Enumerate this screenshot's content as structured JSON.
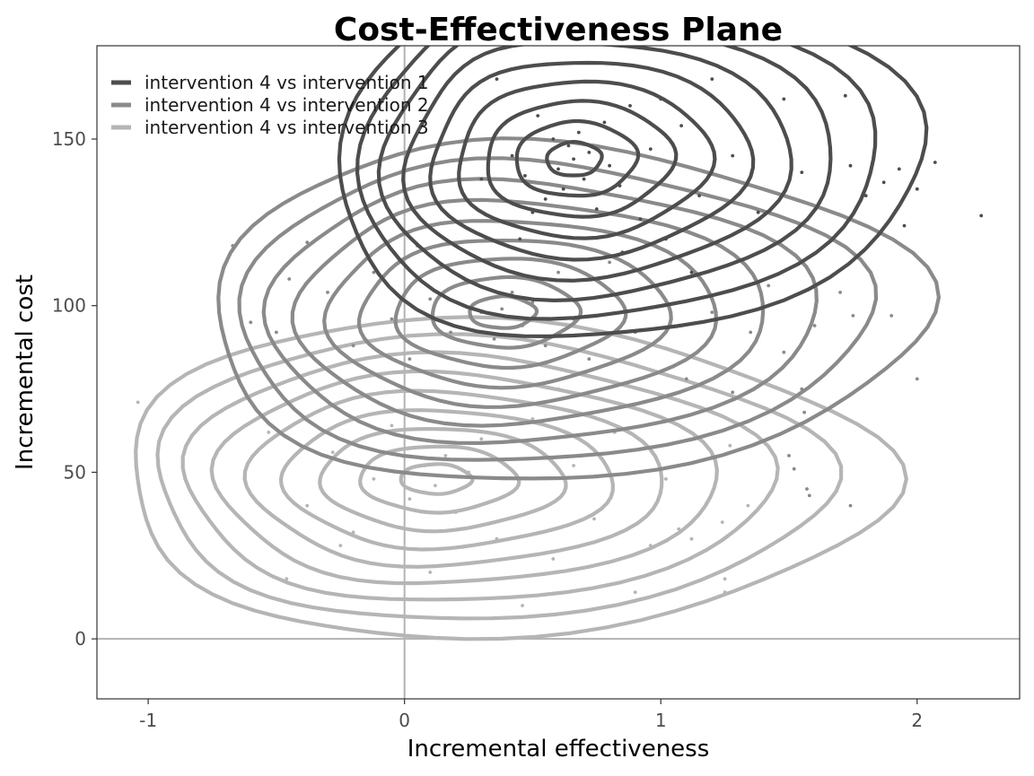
{
  "chart_data": {
    "type": "scatter",
    "title": "Cost-Effectiveness Plane",
    "xlabel": "Incremental effectiveness",
    "ylabel": "Incremental cost",
    "xlim": [
      -1.2,
      2.4
    ],
    "ylim": [
      -18,
      178
    ],
    "x_ticks": [
      -1,
      0,
      1,
      2
    ],
    "y_ticks": [
      0,
      50,
      100,
      150
    ],
    "x_tick_labels": [
      "-1",
      "0",
      "1",
      "2"
    ],
    "y_tick_labels": [
      "0",
      "50",
      "100",
      "150"
    ],
    "reference_lines": {
      "x": 0,
      "y": 0
    },
    "grid": false,
    "legend_position": "top-left inside",
    "overlay": "density contours",
    "series": [
      {
        "name": "intervention 4 vs intervention 1",
        "color": "#4d4d4d",
        "center": [
          0.66,
          144
        ],
        "spread": [
          0.38,
          18
        ],
        "points": [
          [
            0.36,
            168
          ],
          [
            0.42,
            145
          ],
          [
            0.47,
            139
          ],
          [
            0.52,
            157
          ],
          [
            0.55,
            132
          ],
          [
            0.58,
            150
          ],
          [
            0.6,
            141
          ],
          [
            0.62,
            135
          ],
          [
            0.64,
            148
          ],
          [
            0.66,
            144
          ],
          [
            0.68,
            152
          ],
          [
            0.7,
            138
          ],
          [
            0.72,
            146
          ],
          [
            0.75,
            129
          ],
          [
            0.78,
            155
          ],
          [
            0.8,
            142
          ],
          [
            0.84,
            136
          ],
          [
            0.88,
            160
          ],
          [
            0.92,
            126
          ],
          [
            0.96,
            147
          ],
          [
            1.02,
            120
          ],
          [
            1.08,
            154
          ],
          [
            1.15,
            133
          ],
          [
            1.2,
            168
          ],
          [
            1.28,
            145
          ],
          [
            1.38,
            128
          ],
          [
            1.48,
            162
          ],
          [
            1.55,
            140
          ],
          [
            1.62,
            131
          ],
          [
            1.72,
            163
          ],
          [
            1.8,
            133
          ],
          [
            1.87,
            137
          ],
          [
            1.93,
            141
          ],
          [
            2.0,
            135
          ],
          [
            2.07,
            143
          ],
          [
            2.25,
            127
          ],
          [
            1.74,
            142
          ],
          [
            1.95,
            124
          ],
          [
            0.3,
            138
          ],
          [
            0.25,
            152
          ],
          [
            0.5,
            128
          ],
          [
            0.85,
            116
          ],
          [
            1.0,
            162
          ],
          [
            0.45,
            120
          ],
          [
            1.12,
            110
          ]
        ]
      },
      {
        "name": "intervention 4 vs intervention 2",
        "color": "#8a8a8a",
        "center": [
          0.38,
          98
        ],
        "spread": [
          0.45,
          17
        ],
        "points": [
          [
            -0.67,
            118
          ],
          [
            -0.6,
            95
          ],
          [
            -0.5,
            92
          ],
          [
            -0.38,
            119
          ],
          [
            -0.3,
            104
          ],
          [
            -0.2,
            88
          ],
          [
            -0.12,
            110
          ],
          [
            -0.05,
            96
          ],
          [
            0.02,
            84
          ],
          [
            0.1,
            102
          ],
          [
            0.18,
            92
          ],
          [
            0.25,
            107
          ],
          [
            0.3,
            98
          ],
          [
            0.35,
            90
          ],
          [
            0.38,
            99
          ],
          [
            0.42,
            104
          ],
          [
            0.46,
            94
          ],
          [
            0.5,
            101
          ],
          [
            0.55,
            88
          ],
          [
            0.6,
            110
          ],
          [
            0.66,
            96
          ],
          [
            0.72,
            84
          ],
          [
            0.8,
            113
          ],
          [
            0.9,
            92
          ],
          [
            1.0,
            104
          ],
          [
            1.1,
            78
          ],
          [
            1.2,
            98
          ],
          [
            1.28,
            74
          ],
          [
            1.35,
            92
          ],
          [
            1.42,
            106
          ],
          [
            1.48,
            86
          ],
          [
            1.6,
            94
          ],
          [
            1.75,
            97
          ],
          [
            1.9,
            97
          ],
          [
            1.7,
            104
          ],
          [
            2.0,
            78
          ],
          [
            1.55,
            75
          ],
          [
            1.56,
            68
          ],
          [
            1.5,
            55
          ],
          [
            1.52,
            51
          ],
          [
            1.57,
            45
          ],
          [
            1.58,
            43
          ],
          [
            1.74,
            40
          ],
          [
            -0.45,
            108
          ],
          [
            0.05,
            118
          ]
        ]
      },
      {
        "name": "intervention 4 vs intervention 3",
        "color": "#b5b5b5",
        "center": [
          0.12,
          48
        ],
        "spread": [
          0.48,
          16
        ],
        "points": [
          [
            -1.04,
            71
          ],
          [
            -0.53,
            62
          ],
          [
            -0.46,
            18
          ],
          [
            -0.38,
            40
          ],
          [
            -0.28,
            56
          ],
          [
            -0.2,
            32
          ],
          [
            -0.12,
            48
          ],
          [
            -0.05,
            64
          ],
          [
            0.02,
            42
          ],
          [
            0.08,
            52
          ],
          [
            0.12,
            46
          ],
          [
            0.16,
            55
          ],
          [
            0.2,
            38
          ],
          [
            0.25,
            50
          ],
          [
            0.3,
            60
          ],
          [
            0.36,
            30
          ],
          [
            0.42,
            44
          ],
          [
            0.5,
            66
          ],
          [
            0.58,
            24
          ],
          [
            0.66,
            52
          ],
          [
            0.74,
            36
          ],
          [
            0.82,
            62
          ],
          [
            0.9,
            14
          ],
          [
            0.96,
            28
          ],
          [
            1.02,
            48
          ],
          [
            1.07,
            33
          ],
          [
            1.12,
            30
          ],
          [
            1.24,
            35
          ],
          [
            1.25,
            18
          ],
          [
            1.25,
            14
          ],
          [
            1.27,
            58
          ],
          [
            1.34,
            40
          ],
          [
            0.46,
            10
          ],
          [
            0.1,
            20
          ],
          [
            -0.25,
            28
          ],
          [
            0.6,
            75
          ]
        ]
      }
    ]
  }
}
